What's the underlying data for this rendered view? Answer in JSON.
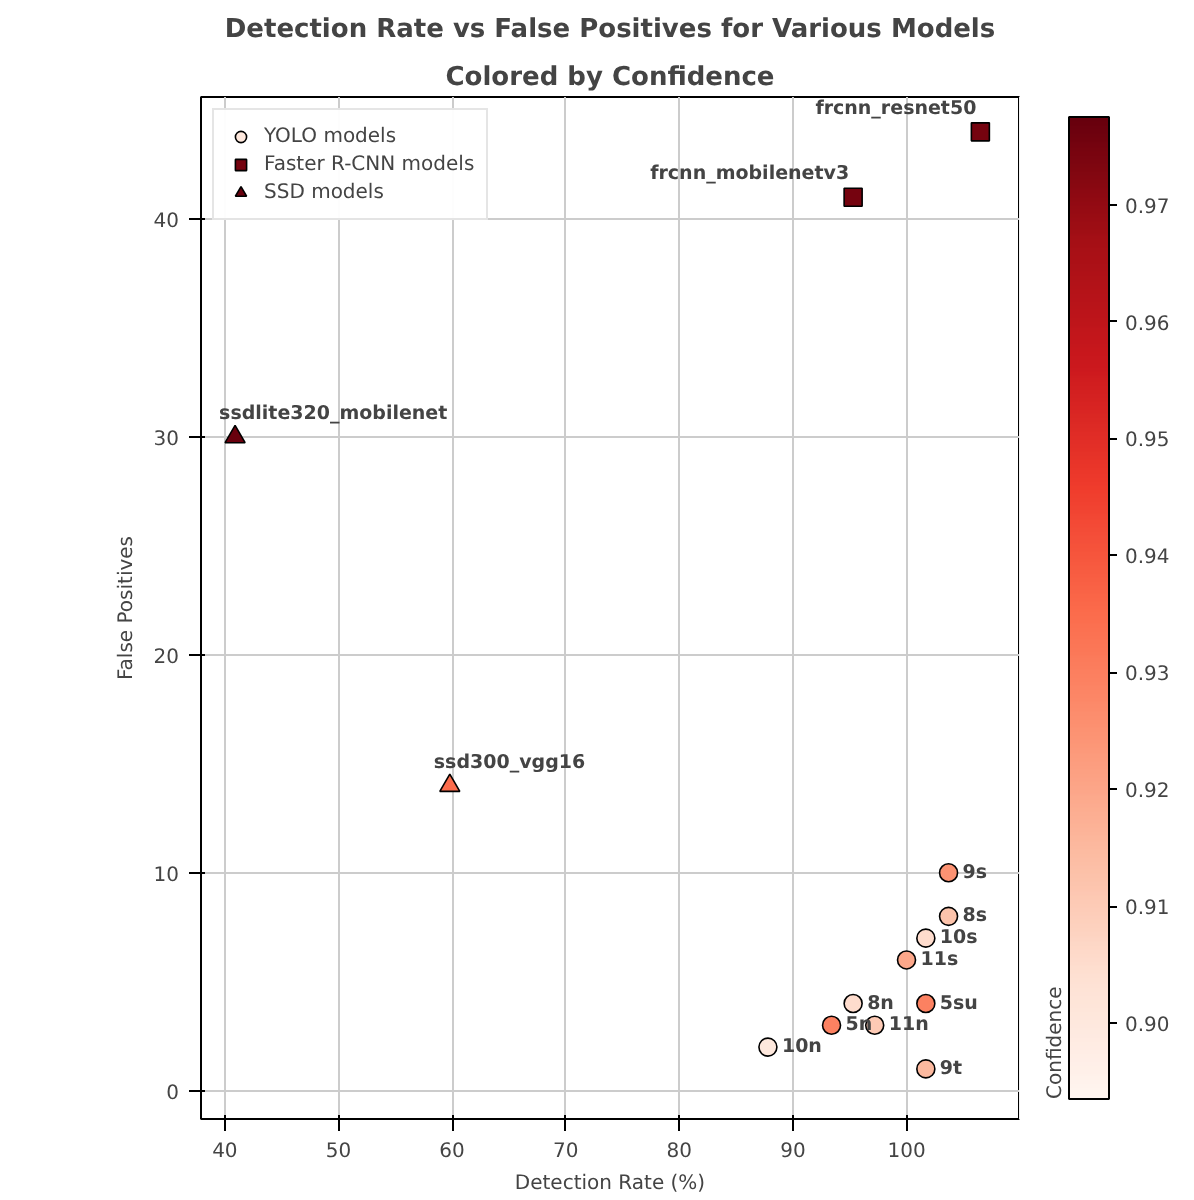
{
  "chart_data": {
    "type": "scatter",
    "title": "Detection Rate vs False Positives for Various Models",
    "subtitle": "Colored by Confidence",
    "xlabel": "Detection Rate (%)",
    "ylabel": "False Positives",
    "clabel": "Confidence",
    "xlim": [
      37.9,
      109.9
    ],
    "ylim": [
      -1.3,
      45.6
    ],
    "xticks": [
      40,
      50,
      60,
      70,
      80,
      90,
      100
    ],
    "yticks": [
      0,
      10,
      20,
      30,
      40
    ],
    "clim": [
      0.8935,
      0.9775
    ],
    "cticks": [
      {
        "value": 0.9,
        "label": "0.90"
      },
      0.91,
      0.92,
      0.93,
      0.94,
      0.95,
      0.96,
      0.97
    ],
    "grid": true,
    "legend": "top left",
    "series": [
      {
        "name": "YOLO models",
        "marker": "circle",
        "x": [
          87.8,
          93.4,
          97.2,
          95.3,
          101.7,
          100.0,
          101.7,
          103.7,
          103.7,
          101.7
        ],
        "values": [
          2,
          3,
          3,
          4,
          4,
          6,
          7,
          8,
          10,
          1
        ],
        "colors": [
          "#fee8dd",
          "#fc8161",
          "#fdcab5",
          "#fedccd",
          "#fc8161",
          "#fca78a",
          "#fedccd",
          "#fcc3ab",
          "#fc9272",
          "#fcb99f"
        ]
      },
      {
        "name": "Faster R-CNN models",
        "marker": "square",
        "x": [
          95.3,
          106.5
        ],
        "values": [
          41,
          44
        ],
        "colors": [
          "#75030f",
          "#75030f"
        ]
      },
      {
        "name": "SSD models",
        "marker": "triangle",
        "x": [
          40.9,
          59.8
        ],
        "values": [
          30,
          14
        ],
        "colors": [
          "#69000d",
          "#fb6c4c"
        ]
      }
    ],
    "annotations": [
      {
        "text": "10n",
        "x": 87.8,
        "y": 2
      },
      {
        "text": "5n",
        "x": 93.4,
        "y": 3
      },
      {
        "text": "11n",
        "x": 97.2,
        "y": 3
      },
      {
        "text": "8n",
        "x": 95.3,
        "y": 4
      },
      {
        "text": "5su",
        "x": 101.7,
        "y": 4
      },
      {
        "text": "11s",
        "x": 100.0,
        "y": 6
      },
      {
        "text": "10s",
        "x": 101.7,
        "y": 7
      },
      {
        "text": "8s",
        "x": 103.7,
        "y": 8
      },
      {
        "text": "9s",
        "x": 103.7,
        "y": 10
      },
      {
        "text": "9t",
        "x": 101.7,
        "y": 1
      },
      {
        "text": "frcnn_mobilenetv3",
        "x": 95.3,
        "y": 41
      },
      {
        "text": "frcnn_resnet50",
        "x": 106.5,
        "y": 44
      },
      {
        "text": "ssdlite320_mobilenet",
        "x": 40.9,
        "y": 30
      },
      {
        "text": "ssd300_vgg16",
        "x": 59.8,
        "y": 14
      }
    ]
  }
}
